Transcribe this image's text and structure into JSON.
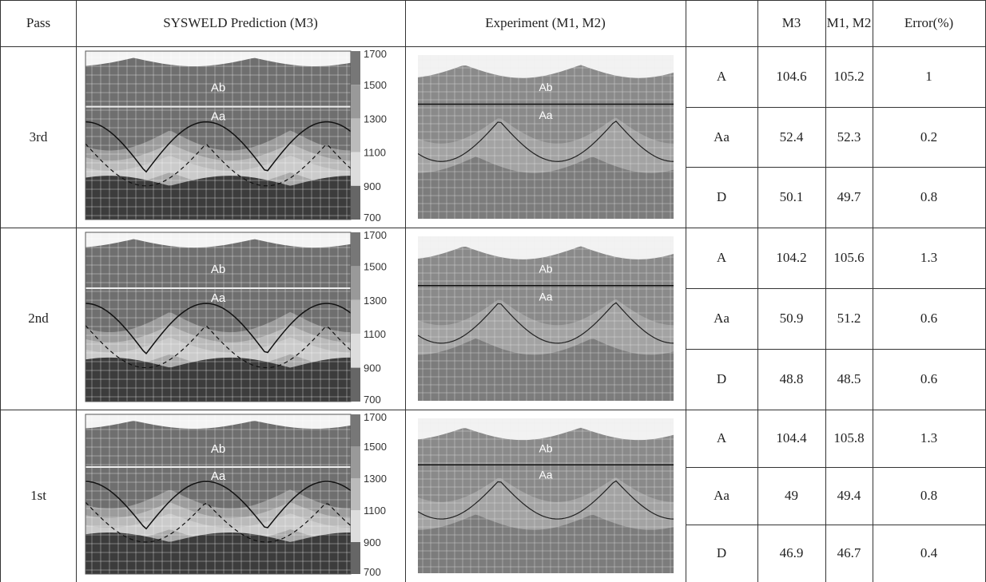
{
  "header": {
    "pass": "Pass",
    "prediction": "SYSWELD Prediction (M3)",
    "experiment": "Experiment (M1, M2)",
    "m3": "M3",
    "m1m2": "M1, M2",
    "error": "Error(%)"
  },
  "rows": [
    {
      "pass": "3rd",
      "prediction": {
        "regions": [
          "Ab",
          "Aa"
        ],
        "colorbar": [
          1700,
          1500,
          1300,
          1100,
          900,
          700
        ]
      },
      "experiment": {
        "regions": [
          "Ab",
          "Aa"
        ]
      },
      "measures": [
        {
          "zone": "A",
          "m3": 104.6,
          "m1m2": 105.2,
          "error": 1
        },
        {
          "zone": "Aa",
          "m3": 52.4,
          "m1m2": 52.3,
          "error": 0.2
        },
        {
          "zone": "D",
          "m3": 50.1,
          "m1m2": 49.7,
          "error": 0.8
        }
      ]
    },
    {
      "pass": "2nd",
      "prediction": {
        "regions": [
          "Ab",
          "Aa"
        ],
        "colorbar": [
          1700,
          1500,
          1300,
          1100,
          900,
          700
        ]
      },
      "experiment": {
        "regions": [
          "Ab",
          "Aa"
        ]
      },
      "measures": [
        {
          "zone": "A",
          "m3": 104.2,
          "m1m2": 105.6,
          "error": 1.3
        },
        {
          "zone": "Aa",
          "m3": 50.9,
          "m1m2": 51.2,
          "error": 0.6
        },
        {
          "zone": "D",
          "m3": 48.8,
          "m1m2": 48.5,
          "error": 0.6
        }
      ]
    },
    {
      "pass": "1st",
      "prediction": {
        "regions": [
          "Ab",
          "Aa"
        ],
        "colorbar": [
          1700,
          1500,
          1300,
          1100,
          900,
          700
        ]
      },
      "experiment": {
        "regions": [
          "Ab",
          "Aa"
        ]
      },
      "measures": [
        {
          "zone": "A",
          "m3": 104.4,
          "m1m2": 105.8,
          "error": 1.3
        },
        {
          "zone": "Aa",
          "m3": 49,
          "m1m2": 49.4,
          "error": 0.8
        },
        {
          "zone": "D",
          "m3": 46.9,
          "m1m2": 46.7,
          "error": 0.4
        }
      ]
    }
  ]
}
